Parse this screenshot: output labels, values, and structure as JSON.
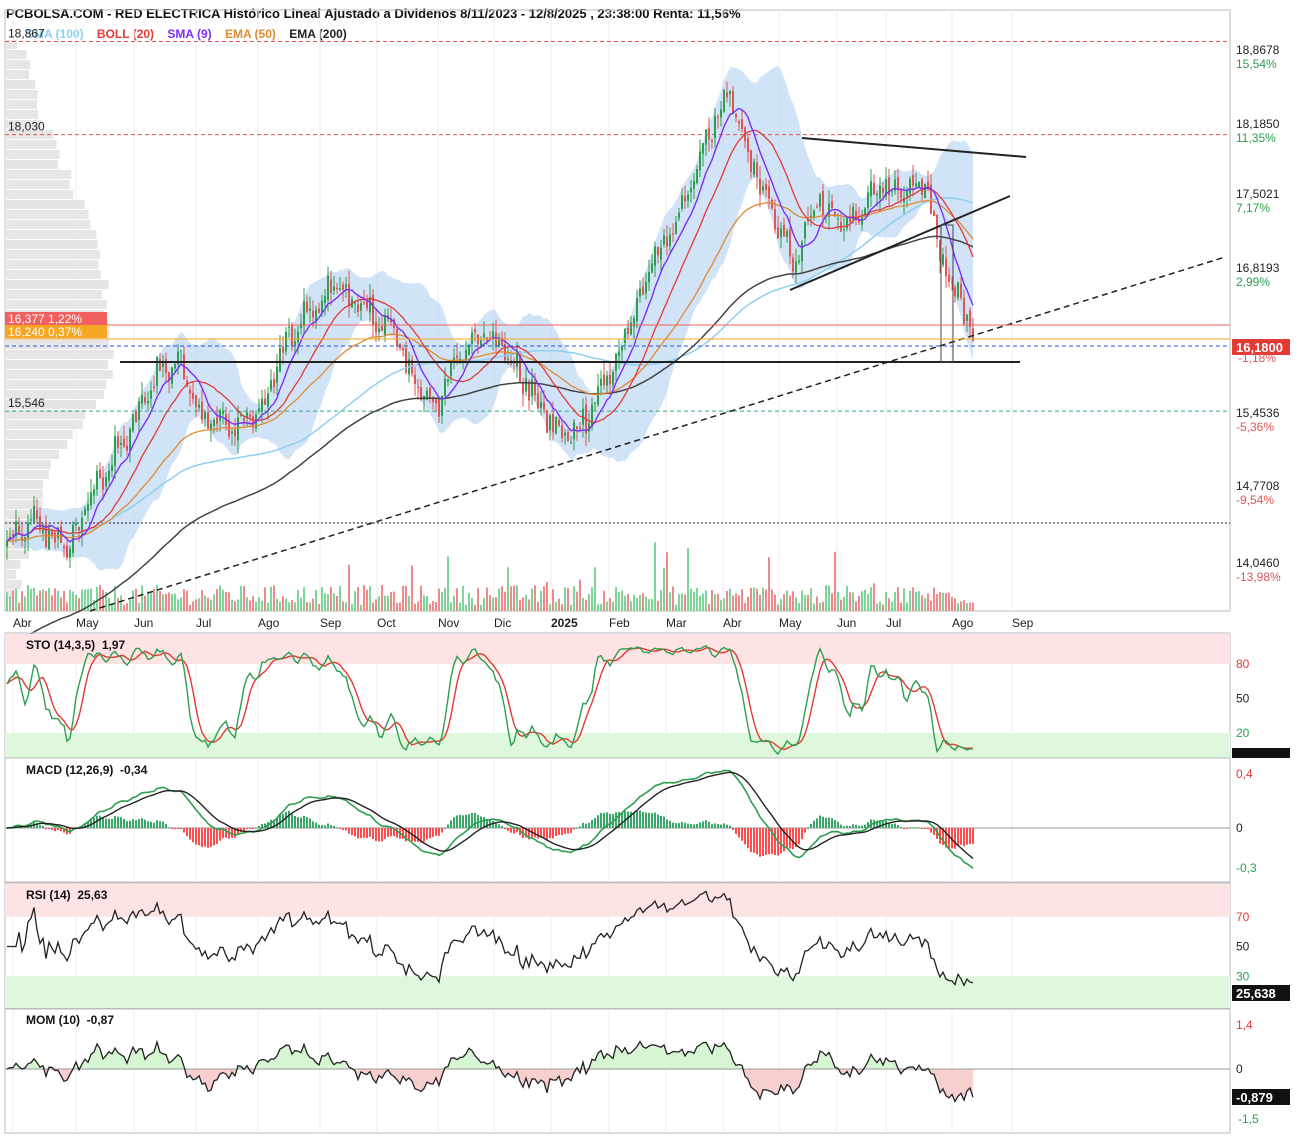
{
  "title": "PCBOLSA.COM - RED ELECTRICA Histórico Lineal Ajustado a Dividenos 8/11/2023 - 12/8/2025 , 23:38:00 Renta: 11,56%",
  "legend": [
    {
      "label": "SMA (100)",
      "color": "#8fcff0"
    },
    {
      "label": "BOLL (20)",
      "color": "#e53935"
    },
    {
      "label": "SMA (9)",
      "color": "#7b2ff7"
    },
    {
      "label": "EMA (50)",
      "color": "#e08a30"
    },
    {
      "label": "EMA (200)",
      "color": "#222222"
    }
  ],
  "panels": {
    "sto": {
      "label": "STO (14,3,5)",
      "value": "1,97",
      "last": "1,973"
    },
    "macd": {
      "label": "MACD (12,26,9)",
      "value": "-0,34"
    },
    "rsi": {
      "label": "RSI (14)",
      "value": "25,63",
      "last": "25,638"
    },
    "mom": {
      "label": "MOM (10)",
      "value": "-0,87",
      "last": "-0,879"
    }
  },
  "colors": {
    "up": "#2e9e4f",
    "down": "#e05555",
    "band_fill": "#bcd7f3",
    "last_price_bg": "#e53935",
    "overbought_fill": "#fde3e3",
    "oversold_fill": "#dff7dc"
  },
  "chart_data": [
    {
      "type": "candlestick",
      "title": "PCBOLSA.COM - RED ELECTRICA Histórico Lineal Ajustado a Dividenos 8/11/2023 - 12/8/2025 , 23:38:00 Renta: 11,56%",
      "x_tick_labels": [
        "Abr",
        "May",
        "Jun",
        "Jul",
        "Ago",
        "Sep",
        "Oct",
        "Nov",
        "Dic",
        "2025",
        "Feb",
        "Mar",
        "Abr",
        "May",
        "Jun",
        "Jul",
        "Ago",
        "Sep"
      ],
      "ylim": [
        13.75,
        19.15
      ],
      "right_axis": [
        {
          "price": "18,8678",
          "pct": "15,54%",
          "pct_color": "#2e9e4f"
        },
        {
          "price": "18,1850",
          "pct": "11,35%",
          "pct_color": "#2e9e4f"
        },
        {
          "price": "17,5021",
          "pct": "7,17%",
          "pct_color": "#2e9e4f"
        },
        {
          "price": "16,8193",
          "pct": "2,99%",
          "pct_color": "#2e9e4f"
        },
        {
          "price": "15,4536",
          "pct": "-5,36%",
          "pct_color": "#e05555"
        },
        {
          "price": "14,7708",
          "pct": "-9,54%",
          "pct_color": "#e05555"
        },
        {
          "price": "14,0460",
          "pct": "-13,98%",
          "pct_color": "#e05555"
        }
      ],
      "last_price": {
        "value": "16,1800",
        "pct": "-1,18%"
      },
      "levels": [
        {
          "value": "18,867",
          "style": "red-dash"
        },
        {
          "value": "18,030",
          "style": "red-dash"
        },
        {
          "value": "15,546",
          "style": "green-dash"
        }
      ],
      "left_tags": [
        {
          "text": "16,377  1,22%",
          "color": "#f06060"
        },
        {
          "text": "16,240  0,37%",
          "color": "#f5a623"
        }
      ],
      "anchors_close": [
        [
          0,
          14.35
        ],
        [
          10,
          14.55
        ],
        [
          20,
          14.3
        ],
        [
          30,
          14.9
        ],
        [
          40,
          15.3
        ],
        [
          50,
          15.9
        ],
        [
          58,
          16.0
        ],
        [
          65,
          15.5
        ],
        [
          75,
          15.4
        ],
        [
          85,
          15.55
        ],
        [
          92,
          16.1
        ],
        [
          100,
          16.4
        ],
        [
          110,
          16.7
        ],
        [
          118,
          16.45
        ],
        [
          128,
          16.3
        ],
        [
          136,
          15.8
        ],
        [
          143,
          15.6
        ],
        [
          152,
          16.1
        ],
        [
          160,
          16.3
        ],
        [
          168,
          16.0
        ],
        [
          175,
          15.7
        ],
        [
          182,
          15.4
        ],
        [
          188,
          15.3
        ],
        [
          195,
          15.6
        ],
        [
          205,
          16.1
        ],
        [
          215,
          16.9
        ],
        [
          225,
          17.3
        ],
        [
          232,
          17.9
        ],
        [
          240,
          18.4
        ],
        [
          248,
          17.8
        ],
        [
          255,
          17.3
        ],
        [
          262,
          16.9
        ],
        [
          270,
          17.45
        ],
        [
          280,
          17.2
        ],
        [
          290,
          17.55
        ],
        [
          300,
          17.5
        ],
        [
          306,
          17.6
        ],
        [
          312,
          16.9
        ],
        [
          318,
          16.5
        ],
        [
          322,
          16.18
        ]
      ]
    },
    {
      "type": "line",
      "name": "STO (14,3,5)",
      "tick_labels": [
        "80",
        "50",
        "20"
      ],
      "last": 1.973
    },
    {
      "type": "line",
      "name": "MACD (12,26,9)",
      "tick_labels": [
        "0,4",
        "0",
        "-0,3"
      ],
      "last": -0.34
    },
    {
      "type": "line",
      "name": "RSI (14)",
      "tick_labels": [
        "70",
        "50",
        "30"
      ],
      "last": 25.638
    },
    {
      "type": "line",
      "name": "MOM (10)",
      "tick_labels": [
        "1,4",
        "0",
        "-1,5"
      ],
      "last": -0.879
    }
  ]
}
